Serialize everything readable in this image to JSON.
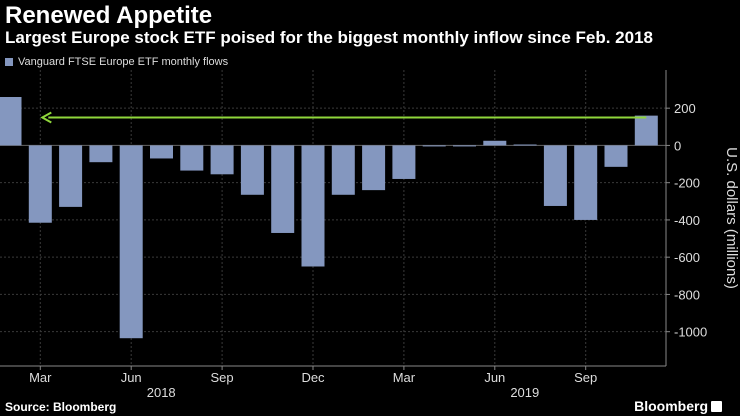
{
  "title": "Renewed Appetite",
  "subtitle": "Largest Europe stock ETF poised for the biggest monthly inflow since Feb. 2018",
  "legend": {
    "label": "Vanguard FTSE Europe ETF monthly flows"
  },
  "source": "Source: Bloomberg",
  "brand": "Bloomberg",
  "colors": {
    "bar": "#8497bf",
    "arrow": "#8fd63b",
    "grid": "#3a3a3a",
    "background": "#000000"
  },
  "chart_data": {
    "type": "bar",
    "categories": [
      "Feb 2018",
      "Mar 2018",
      "Apr 2018",
      "May 2018",
      "Jun 2018",
      "Jul 2018",
      "Aug 2018",
      "Sep 2018",
      "Oct 2018",
      "Nov 2018",
      "Dec 2018",
      "Jan 2019",
      "Feb 2019",
      "Mar 2019",
      "Apr 2019",
      "May 2019",
      "Jun 2019",
      "Jul 2019",
      "Aug 2019",
      "Sep 2019",
      "Oct 2019",
      "Nov 2019"
    ],
    "series": [
      {
        "values": [
          260,
          -415,
          -330,
          -90,
          -1035,
          -70,
          -135,
          -155,
          -265,
          -470,
          -650,
          -265,
          -240,
          -180,
          -5,
          -5,
          25,
          5,
          -325,
          -400,
          -115,
          160
        ]
      }
    ],
    "ylabel": "U.S. dollars (millions)",
    "ylim": [
      -1050,
      260
    ],
    "yticks": [
      200,
      0,
      -200,
      -400,
      -600,
      -800,
      -1000
    ],
    "xtick_labels": [
      {
        "category": "Mar 2018",
        "label": "Mar"
      },
      {
        "category": "Jun 2018",
        "label": "Jun"
      },
      {
        "category": "Sep 2018",
        "label": "Sep"
      },
      {
        "category": "Dec 2018",
        "label": "Dec"
      },
      {
        "category": "Mar 2019",
        "label": "Mar"
      },
      {
        "category": "Jun 2019",
        "label": "Jun"
      },
      {
        "category": "Sep 2019",
        "label": "Sep"
      }
    ],
    "year_labels": [
      {
        "category": "Jun 2018",
        "label": "2018"
      },
      {
        "category": "Jun 2019",
        "label": "2019"
      }
    ],
    "annotation": {
      "type": "arrow",
      "from_category": "Nov 2019",
      "to_category": "Mar 2018",
      "value": 150
    },
    "grid": true,
    "legend_position": "top-left"
  }
}
